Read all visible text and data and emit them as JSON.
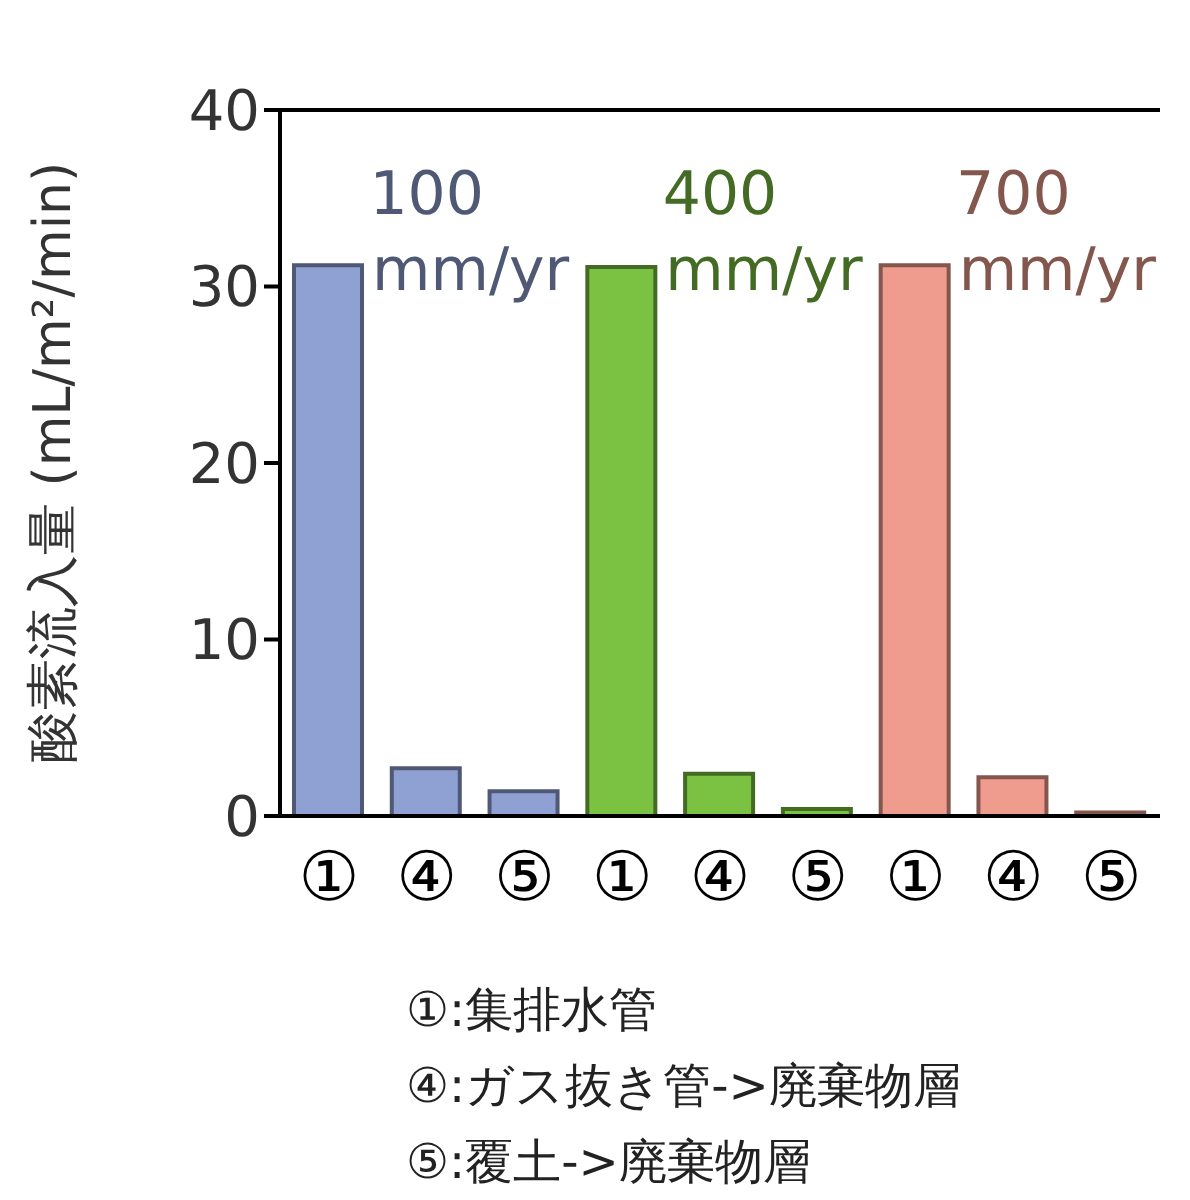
{
  "chart_data": {
    "type": "bar",
    "ylabel": "酸素流入量 (mL/m²/min)",
    "categories": [
      "①",
      "④",
      "⑤",
      "①",
      "④",
      "⑤",
      "①",
      "④",
      "⑤"
    ],
    "values": [
      31.2,
      2.7,
      1.4,
      31.1,
      2.4,
      0.4,
      31.2,
      2.2,
      0.2
    ],
    "colors": [
      "#8fa0d2",
      "#8fa0d2",
      "#8fa0d2",
      "#7cc242",
      "#7cc242",
      "#7cc242",
      "#ef9c8e",
      "#ef9c8e",
      "#ef9c8e"
    ],
    "ylim": [
      0,
      40
    ],
    "yticks": [
      0,
      10,
      20,
      30,
      40
    ],
    "grid": false,
    "legend": false,
    "annotations": [
      "100 mm/yr",
      "400 mm/yr",
      "700 mm/yr",
      "①:集排水管",
      "④:ガス抜き管->廃棄物層",
      "⑤:覆土->廃棄物層"
    ]
  }
}
